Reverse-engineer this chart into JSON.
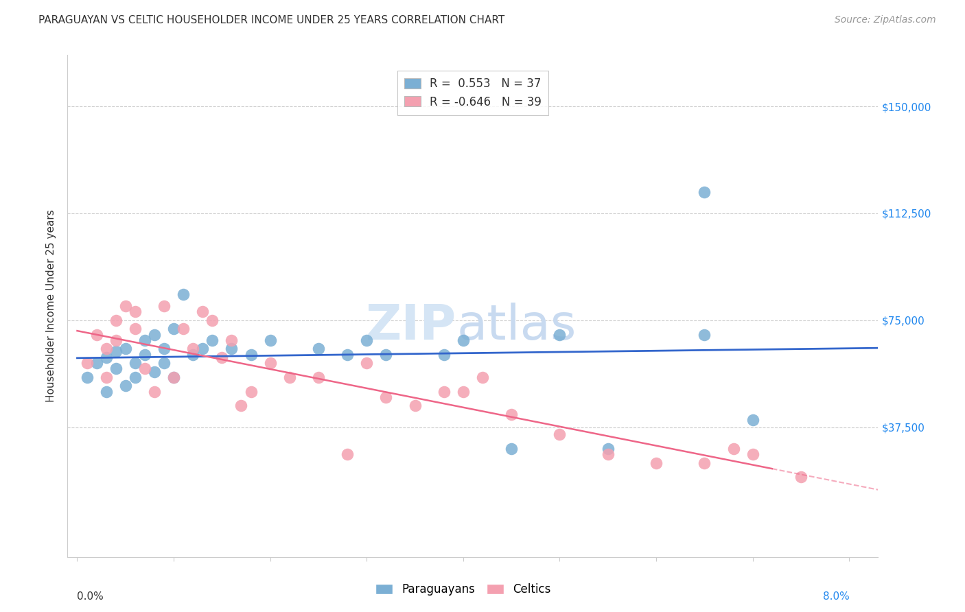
{
  "title": "PARAGUAYAN VS CELTIC HOUSEHOLDER INCOME UNDER 25 YEARS CORRELATION CHART",
  "source": "Source: ZipAtlas.com",
  "ylabel": "Householder Income Under 25 years",
  "legend_paraguayan": "R =  0.553   N = 37",
  "legend_celtic": "R = -0.646   N = 39",
  "blue_color": "#7BAFD4",
  "pink_color": "#F4A0B0",
  "blue_line_color": "#3366CC",
  "pink_line_color": "#EE6688",
  "par_x": [
    0.001,
    0.002,
    0.003,
    0.003,
    0.004,
    0.004,
    0.005,
    0.005,
    0.006,
    0.006,
    0.007,
    0.007,
    0.008,
    0.008,
    0.009,
    0.009,
    0.01,
    0.01,
    0.011,
    0.012,
    0.013,
    0.014,
    0.016,
    0.018,
    0.02,
    0.025,
    0.028,
    0.03,
    0.032,
    0.038,
    0.04,
    0.045,
    0.05,
    0.055,
    0.065,
    0.065,
    0.07
  ],
  "par_y": [
    55000,
    60000,
    50000,
    62000,
    58000,
    64000,
    52000,
    65000,
    60000,
    55000,
    63000,
    68000,
    57000,
    70000,
    65000,
    60000,
    72000,
    55000,
    84000,
    63000,
    65000,
    68000,
    65000,
    63000,
    68000,
    65000,
    63000,
    68000,
    63000,
    63000,
    68000,
    30000,
    70000,
    30000,
    70000,
    120000,
    40000
  ],
  "cel_x": [
    0.001,
    0.002,
    0.003,
    0.003,
    0.004,
    0.004,
    0.005,
    0.006,
    0.006,
    0.007,
    0.008,
    0.009,
    0.01,
    0.011,
    0.012,
    0.013,
    0.014,
    0.015,
    0.016,
    0.017,
    0.018,
    0.02,
    0.022,
    0.025,
    0.028,
    0.03,
    0.032,
    0.035,
    0.038,
    0.04,
    0.042,
    0.045,
    0.05,
    0.055,
    0.06,
    0.065,
    0.068,
    0.07,
    0.075
  ],
  "cel_y": [
    60000,
    70000,
    55000,
    65000,
    68000,
    75000,
    80000,
    72000,
    78000,
    58000,
    50000,
    80000,
    55000,
    72000,
    65000,
    78000,
    75000,
    62000,
    68000,
    45000,
    50000,
    60000,
    55000,
    55000,
    28000,
    60000,
    48000,
    45000,
    50000,
    50000,
    55000,
    42000,
    35000,
    28000,
    25000,
    25000,
    30000,
    28000,
    20000
  ],
  "xlim_min": -0.001,
  "xlim_max": 0.083,
  "ylim_min": -8000,
  "ylim_max": 168000,
  "yticks": [
    37500,
    75000,
    112500,
    150000
  ],
  "ytick_labels": [
    "$37,500",
    "$75,000",
    "$112,500",
    "$150,000"
  ]
}
